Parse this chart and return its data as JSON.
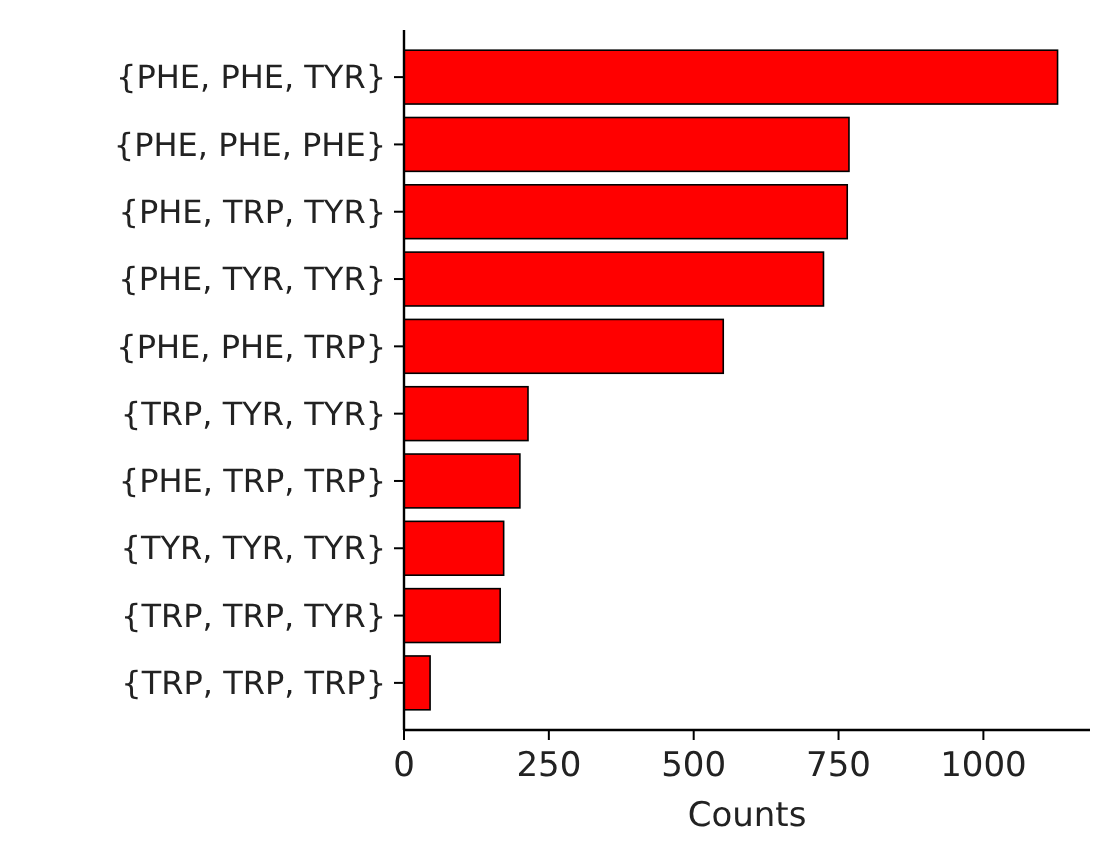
{
  "chart_data": {
    "type": "bar",
    "orientation": "horizontal",
    "xlabel": "Counts",
    "categories": [
      "{PHE, PHE, TYR}",
      "{PHE, PHE, PHE}",
      "{PHE, TRP, TYR}",
      "{PHE, TYR, TYR}",
      "{PHE, PHE, TRP}",
      "{TRP, TYR, TYR}",
      "{PHE, TRP, TRP}",
      "{TYR, TYR, TYR}",
      "{TRP, TRP, TYR}",
      "{TRP, TRP, TRP}"
    ],
    "values": [
      1128,
      768,
      765,
      724,
      551,
      214,
      200,
      172,
      166,
      45
    ],
    "color": "#ff0000",
    "xlim": [
      0,
      1184
    ],
    "xticks": [
      0,
      250,
      500,
      750,
      1000
    ],
    "grid": false
  }
}
